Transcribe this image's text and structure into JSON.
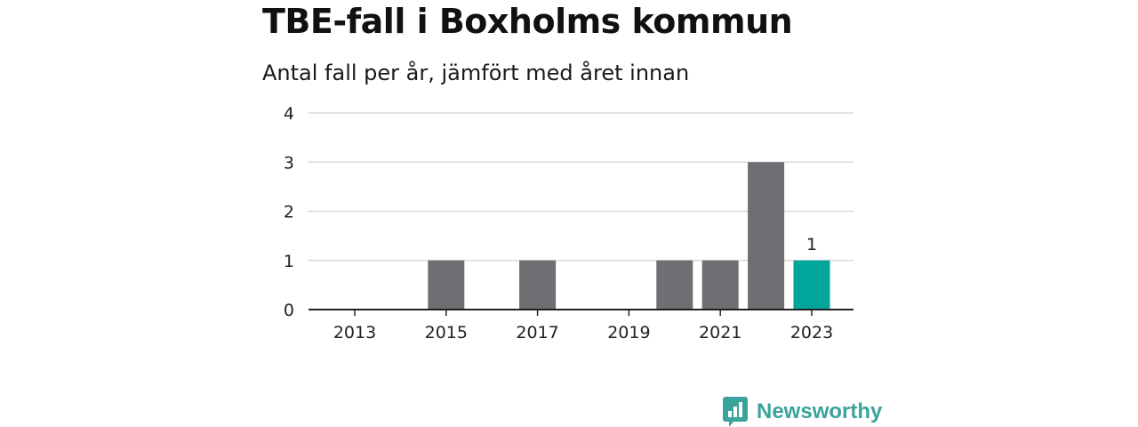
{
  "title": "TBE-fall i Boxholms kommun",
  "subtitle": "Antal fall per år, jämfört med året innan",
  "brand": {
    "name": "Newsworthy",
    "icon": "newsworthy-logo-icon"
  },
  "colors": {
    "bar": "#6e6e73",
    "highlight": "#00a69a",
    "grid": "#d9d9d9",
    "axis": "#222222",
    "brand": "#3aa39a"
  },
  "chart_data": {
    "type": "bar",
    "title": "TBE-fall i Boxholms kommun",
    "subtitle": "Antal fall per år, jämfört med året innan",
    "xlabel": "",
    "ylabel": "",
    "categories": [
      2013,
      2014,
      2015,
      2016,
      2017,
      2018,
      2019,
      2020,
      2021,
      2022,
      2023
    ],
    "x_tick_labels": [
      "2013",
      "2015",
      "2017",
      "2019",
      "2021",
      "2023"
    ],
    "values": [
      0,
      0,
      1,
      0,
      1,
      0,
      0,
      1,
      1,
      3,
      1
    ],
    "highlight_category": 2023,
    "data_labels": [
      {
        "category": 2023,
        "text": "1"
      }
    ],
    "ylim": [
      0,
      4
    ],
    "y_ticks": [
      0,
      1,
      2,
      3,
      4
    ],
    "grid": true,
    "legend": "none"
  }
}
